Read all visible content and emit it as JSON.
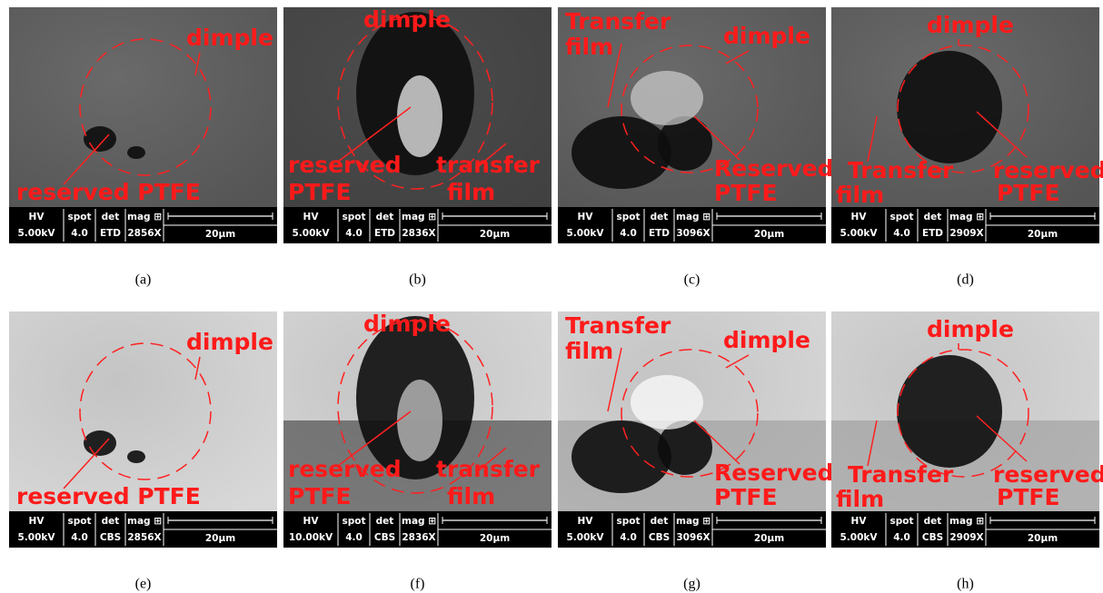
{
  "panels": [
    {
      "caption": "(a)",
      "annotations": [
        "dimple",
        "reserved PTFE"
      ],
      "info": {
        "hv_label": "HV",
        "hv": "5.00kV",
        "spot_label": "spot",
        "spot": "4.0",
        "det_label": "det",
        "det": "ETD",
        "mag_label": "mag ⊞",
        "mag": "2856X",
        "scale": "20μm"
      }
    },
    {
      "caption": "(b)",
      "annotations": [
        "dimple",
        "reserved",
        "PTFE",
        "transfer",
        "film"
      ],
      "info": {
        "hv_label": "HV",
        "hv": "5.00kV",
        "spot_label": "spot",
        "spot": "4.0",
        "det_label": "det",
        "det": "ETD",
        "mag_label": "mag ⊞",
        "mag": "2836X",
        "scale": "20μm"
      }
    },
    {
      "caption": "(c)",
      "annotations": [
        "Transfer",
        "film",
        "dimple",
        "Reserved",
        "PTFE"
      ],
      "info": {
        "hv_label": "HV",
        "hv": "5.00kV",
        "spot_label": "spot",
        "spot": "4.0",
        "det_label": "det",
        "det": "ETD",
        "mag_label": "mag ⊞",
        "mag": "3096X",
        "scale": "20μm"
      }
    },
    {
      "caption": "(d)",
      "annotations": [
        "dimple",
        "Transfer",
        "film",
        "reserved",
        "PTFE"
      ],
      "info": {
        "hv_label": "HV",
        "hv": "5.00kV",
        "spot_label": "spot",
        "spot": "4.0",
        "det_label": "det",
        "det": "ETD",
        "mag_label": "mag ⊞",
        "mag": "2909X",
        "scale": "20μm"
      }
    },
    {
      "caption": "(e)",
      "annotations": [
        "dimple",
        "reserved PTFE"
      ],
      "info": {
        "hv_label": "HV",
        "hv": "5.00kV",
        "spot_label": "spot",
        "spot": "4.0",
        "det_label": "det",
        "det": "CBS",
        "mag_label": "mag ⊞",
        "mag": "2856X",
        "scale": "20μm"
      }
    },
    {
      "caption": "(f)",
      "annotations": [
        "dimple",
        "reserved",
        "PTFE",
        "transfer",
        "film"
      ],
      "info": {
        "hv_label": "HV",
        "hv": "10.00kV",
        "spot_label": "spot",
        "spot": "4.0",
        "det_label": "det",
        "det": "CBS",
        "mag_label": "mag ⊞",
        "mag": "2836X",
        "scale": "20μm"
      }
    },
    {
      "caption": "(g)",
      "annotations": [
        "Transfer",
        "film",
        "dimple",
        "Reserved",
        "PTFE"
      ],
      "info": {
        "hv_label": "HV",
        "hv": "5.00kV",
        "spot_label": "spot",
        "spot": "4.0",
        "det_label": "det",
        "det": "CBS",
        "mag_label": "mag ⊞",
        "mag": "3096X",
        "scale": "20μm"
      }
    },
    {
      "caption": "(h)",
      "annotations": [
        "dimple",
        "Transfer",
        "film",
        "reserved",
        "PTFE"
      ],
      "info": {
        "hv_label": "HV",
        "hv": "5.00kV",
        "spot_label": "spot",
        "spot": "4.0",
        "det_label": "det",
        "det": "CBS",
        "mag_label": "mag ⊞",
        "mag": "2909X",
        "scale": "20μm"
      }
    }
  ]
}
